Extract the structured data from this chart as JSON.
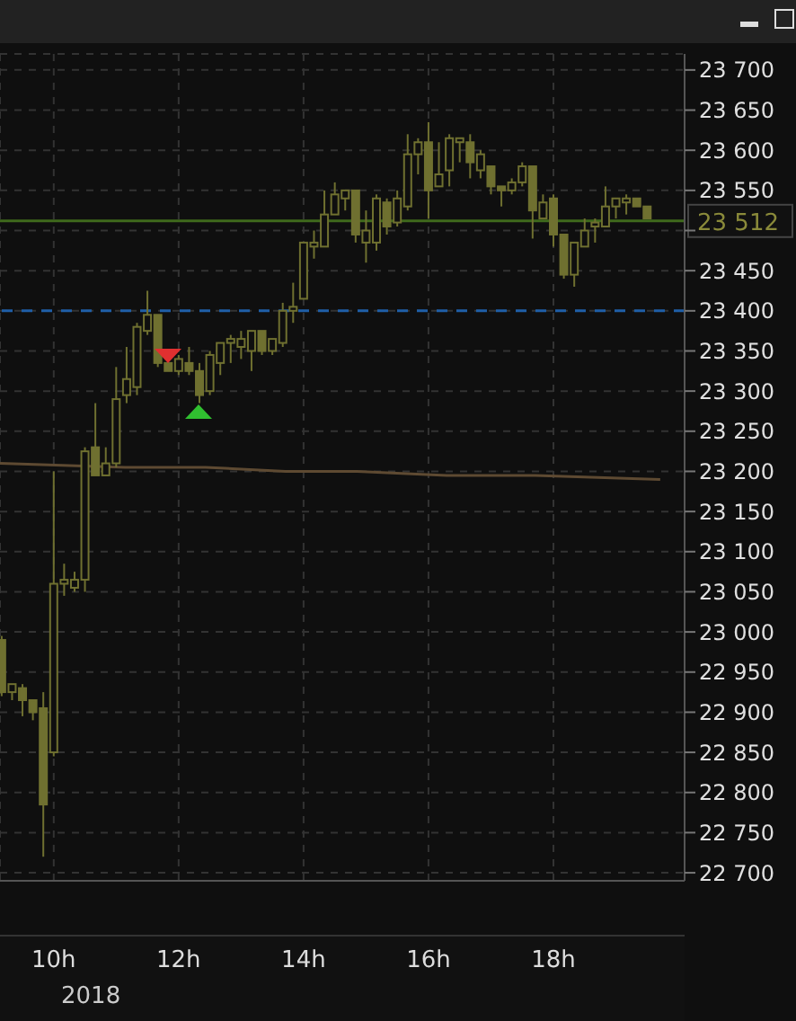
{
  "chart_data": {
    "type": "candlestick",
    "color": "#6f7030",
    "x": [
      9.1667,
      9.3333,
      9.5,
      9.6667,
      9.8333,
      10,
      10.1667,
      10.3333,
      10.5,
      10.6667,
      10.8333,
      11,
      11.1667,
      11.3333,
      11.5,
      11.6667,
      11.8333,
      12,
      12.1667,
      12.3333,
      12.5,
      12.6667,
      12.8333,
      13,
      13.1667,
      13.3333,
      13.5,
      13.6667,
      13.8333,
      14,
      14.1667,
      14.3333,
      14.5,
      14.6667,
      14.8333,
      15,
      15.1667,
      15.3333,
      15.5,
      15.6667,
      15.8333,
      16,
      16.1667,
      16.3333,
      16.5,
      16.6667,
      16.8333,
      17,
      17.1667,
      17.3333,
      17.5,
      17.6667,
      17.8333,
      18,
      18.1667,
      18.3333,
      18.5,
      18.6667,
      18.8333,
      19,
      19.1667,
      19.3333,
      19.5
    ],
    "ohlc": [
      [
        22990,
        22995,
        22920,
        22925
      ],
      [
        22925,
        22935,
        22915,
        22935
      ],
      [
        22930,
        22935,
        22895,
        22915
      ],
      [
        22915,
        22915,
        22890,
        22900
      ],
      [
        22905,
        22925,
        22720,
        22785
      ],
      [
        22850,
        23200,
        22845,
        23060
      ],
      [
        23060,
        23085,
        23045,
        23065
      ],
      [
        23055,
        23075,
        23050,
        23065
      ],
      [
        23065,
        23230,
        23050,
        23225
      ],
      [
        23230,
        23285,
        23195,
        23195
      ],
      [
        23195,
        23230,
        23195,
        23210
      ],
      [
        23210,
        23330,
        23205,
        23290
      ],
      [
        23295,
        23355,
        23285,
        23315
      ],
      [
        23305,
        23385,
        23295,
        23380
      ],
      [
        23375,
        23425,
        23370,
        23395
      ],
      [
        23395,
        23395,
        23330,
        23335
      ],
      [
        23335,
        23335,
        23325,
        23325
      ],
      [
        23325,
        23345,
        23320,
        23340
      ],
      [
        23335,
        23355,
        23320,
        23325
      ],
      [
        23325,
        23335,
        23285,
        23295
      ],
      [
        23300,
        23350,
        23295,
        23345
      ],
      [
        23335,
        23360,
        23320,
        23360
      ],
      [
        23360,
        23370,
        23335,
        23365
      ],
      [
        23355,
        23375,
        23340,
        23365
      ],
      [
        23350,
        23375,
        23325,
        23375
      ],
      [
        23375,
        23375,
        23345,
        23350
      ],
      [
        23350,
        23365,
        23345,
        23365
      ],
      [
        23360,
        23410,
        23355,
        23400
      ],
      [
        23400,
        23435,
        23385,
        23405
      ],
      [
        23415,
        23485,
        23415,
        23485
      ],
      [
        23480,
        23500,
        23465,
        23485
      ],
      [
        23480,
        23550,
        23480,
        23520
      ],
      [
        23520,
        23560,
        23520,
        23545
      ],
      [
        23540,
        23550,
        23525,
        23550
      ],
      [
        23550,
        23550,
        23485,
        23495
      ],
      [
        23485,
        23525,
        23460,
        23500
      ],
      [
        23485,
        23545,
        23475,
        23540
      ],
      [
        23535,
        23540,
        23495,
        23505
      ],
      [
        23510,
        23550,
        23505,
        23540
      ],
      [
        23530,
        23620,
        23525,
        23595
      ],
      [
        23595,
        23615,
        23570,
        23610
      ],
      [
        23610,
        23635,
        23515,
        23550
      ],
      [
        23555,
        23610,
        23555,
        23570
      ],
      [
        23575,
        23620,
        23555,
        23615
      ],
      [
        23610,
        23615,
        23585,
        23615
      ],
      [
        23610,
        23620,
        23565,
        23585
      ],
      [
        23575,
        23600,
        23565,
        23595
      ],
      [
        23580,
        23580,
        23545,
        23555
      ],
      [
        23555,
        23555,
        23530,
        23550
      ],
      [
        23550,
        23565,
        23545,
        23560
      ],
      [
        23560,
        23585,
        23555,
        23580
      ],
      [
        23580,
        23580,
        23490,
        23525
      ],
      [
        23515,
        23545,
        23515,
        23535
      ],
      [
        23540,
        23545,
        23480,
        23495
      ],
      [
        23495,
        23495,
        23440,
        23445
      ],
      [
        23445,
        23485,
        23430,
        23485
      ],
      [
        23480,
        23515,
        23480,
        23500
      ],
      [
        23505,
        23515,
        23485,
        23510
      ],
      [
        23505,
        23555,
        23505,
        23530
      ],
      [
        23530,
        23540,
        23515,
        23540
      ],
      [
        23535,
        23545,
        23520,
        23540
      ],
      [
        23540,
        23540,
        23530,
        23530
      ],
      [
        23530,
        23530,
        23515,
        23515
      ]
    ],
    "series": [
      {
        "type": "line",
        "color": "#5e4a32",
        "x": [
          9.14,
          11.14,
          12.43,
          13.71,
          14.86,
          16.29,
          17.71,
          19.71
        ],
        "values": [
          23210,
          23205,
          23205,
          23200,
          23200,
          23195,
          23195,
          23190
        ]
      }
    ],
    "xlim": [
      9.14,
      20.1
    ],
    "xticks": [
      {
        "value": 10,
        "label": "10h"
      },
      {
        "value": 12,
        "label": "12h"
      },
      {
        "value": 14,
        "label": "14h"
      },
      {
        "value": 16,
        "label": "16h"
      },
      {
        "value": 18,
        "label": "18h"
      }
    ],
    "ylim": [
      22690,
      23720
    ],
    "yticks": [
      {
        "value": 22700,
        "label": "22 700"
      },
      {
        "value": 22750,
        "label": "22 750"
      },
      {
        "value": 22800,
        "label": "22 800"
      },
      {
        "value": 22850,
        "label": "22 850"
      },
      {
        "value": 22900,
        "label": "22 900"
      },
      {
        "value": 22950,
        "label": "22 950"
      },
      {
        "value": 23000,
        "label": "23 000"
      },
      {
        "value": 23050,
        "label": "23 050"
      },
      {
        "value": 23100,
        "label": "23 100"
      },
      {
        "value": 23150,
        "label": "23 150"
      },
      {
        "value": 23200,
        "label": "23 200"
      },
      {
        "value": 23250,
        "label": "23 250"
      },
      {
        "value": 23300,
        "label": "23 300"
      },
      {
        "value": 23350,
        "label": "23 350"
      },
      {
        "value": 23400,
        "label": "23 400"
      },
      {
        "value": 23450,
        "label": "23 450"
      },
      {
        "value": 23500,
        "label": null
      },
      {
        "value": 23550,
        "label": "23 550"
      },
      {
        "value": 23600,
        "label": "23 600"
      },
      {
        "value": 23650,
        "label": "23 650"
      },
      {
        "value": 23700,
        "label": "23 700"
      }
    ],
    "ref_lines": [
      {
        "axis": "y",
        "value": 23512,
        "label": "23 512",
        "color": "#3f6a1c"
      },
      {
        "axis": "y",
        "value": 23400,
        "color": "#1f5fa8",
        "line_style": "dashed"
      }
    ],
    "grid": true,
    "annotations": [
      "2018"
    ]
  }
}
